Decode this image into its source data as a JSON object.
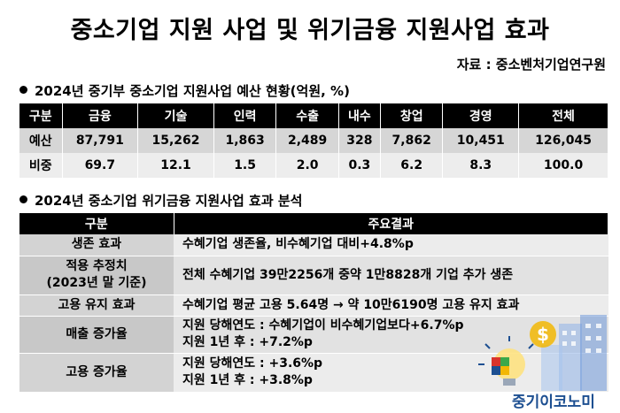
{
  "title": "중소기업 지원 사업 및 위기금융 지원사업 효과",
  "source": "자료 : 중소벤처기업연구원",
  "section1": {
    "heading": "2024년 중기부 중소기업 지원사업 예산 현황(억원, %)",
    "header": [
      "구분",
      "금융",
      "기술",
      "인력",
      "수출",
      "내수",
      "창업",
      "경영",
      "전체"
    ],
    "rows": [
      [
        "예산",
        "87,791",
        "15,262",
        "1,863",
        "2,489",
        "328",
        "7,862",
        "10,451",
        "126,045"
      ],
      [
        "비중",
        "69.7",
        "12.1",
        "1.5",
        "2.0",
        "0.3",
        "6.2",
        "8.3",
        "100.0"
      ]
    ]
  },
  "section2": {
    "heading": "2024년 중소기업 위기금융 지원사업 효과 분석",
    "header": [
      "구분",
      "주요결과"
    ],
    "rows": [
      {
        "key": [
          "생존 효과"
        ],
        "val": [
          "수혜기업 생존율, 비수혜기업 대비+4.8%p"
        ]
      },
      {
        "key": [
          "적용 추정치",
          "(2023년 말 기준)"
        ],
        "val": [
          "전체 수혜기업 39만2256개 중약 1만8828개 기업 추가 생존"
        ]
      },
      {
        "key": [
          "고용 유지 효과"
        ],
        "val": [
          "수혜기업 평균 고용 5.64명 → 약 10만6190명 고용 유지 효과"
        ]
      },
      {
        "key": [
          "매출 증가율"
        ],
        "val": [
          "지원 당해연도 : 수혜기업이 비수혜기업보다+6.7%p",
          "지원 1년 후 : +7.2%p"
        ]
      },
      {
        "key": [
          "고용 증가율"
        ],
        "val": [
          "지원 당해연도 : +3.6%p",
          "지원 1년 후 : +3.8%p"
        ]
      }
    ]
  },
  "brand": {
    "name": "중기이코노미",
    "icon": "dollar-bulb-building-icon",
    "colors": {
      "blue": "#1d4f91",
      "yellow": "#f2b705",
      "red": "#d9342b",
      "green": "#3aa84a"
    }
  }
}
